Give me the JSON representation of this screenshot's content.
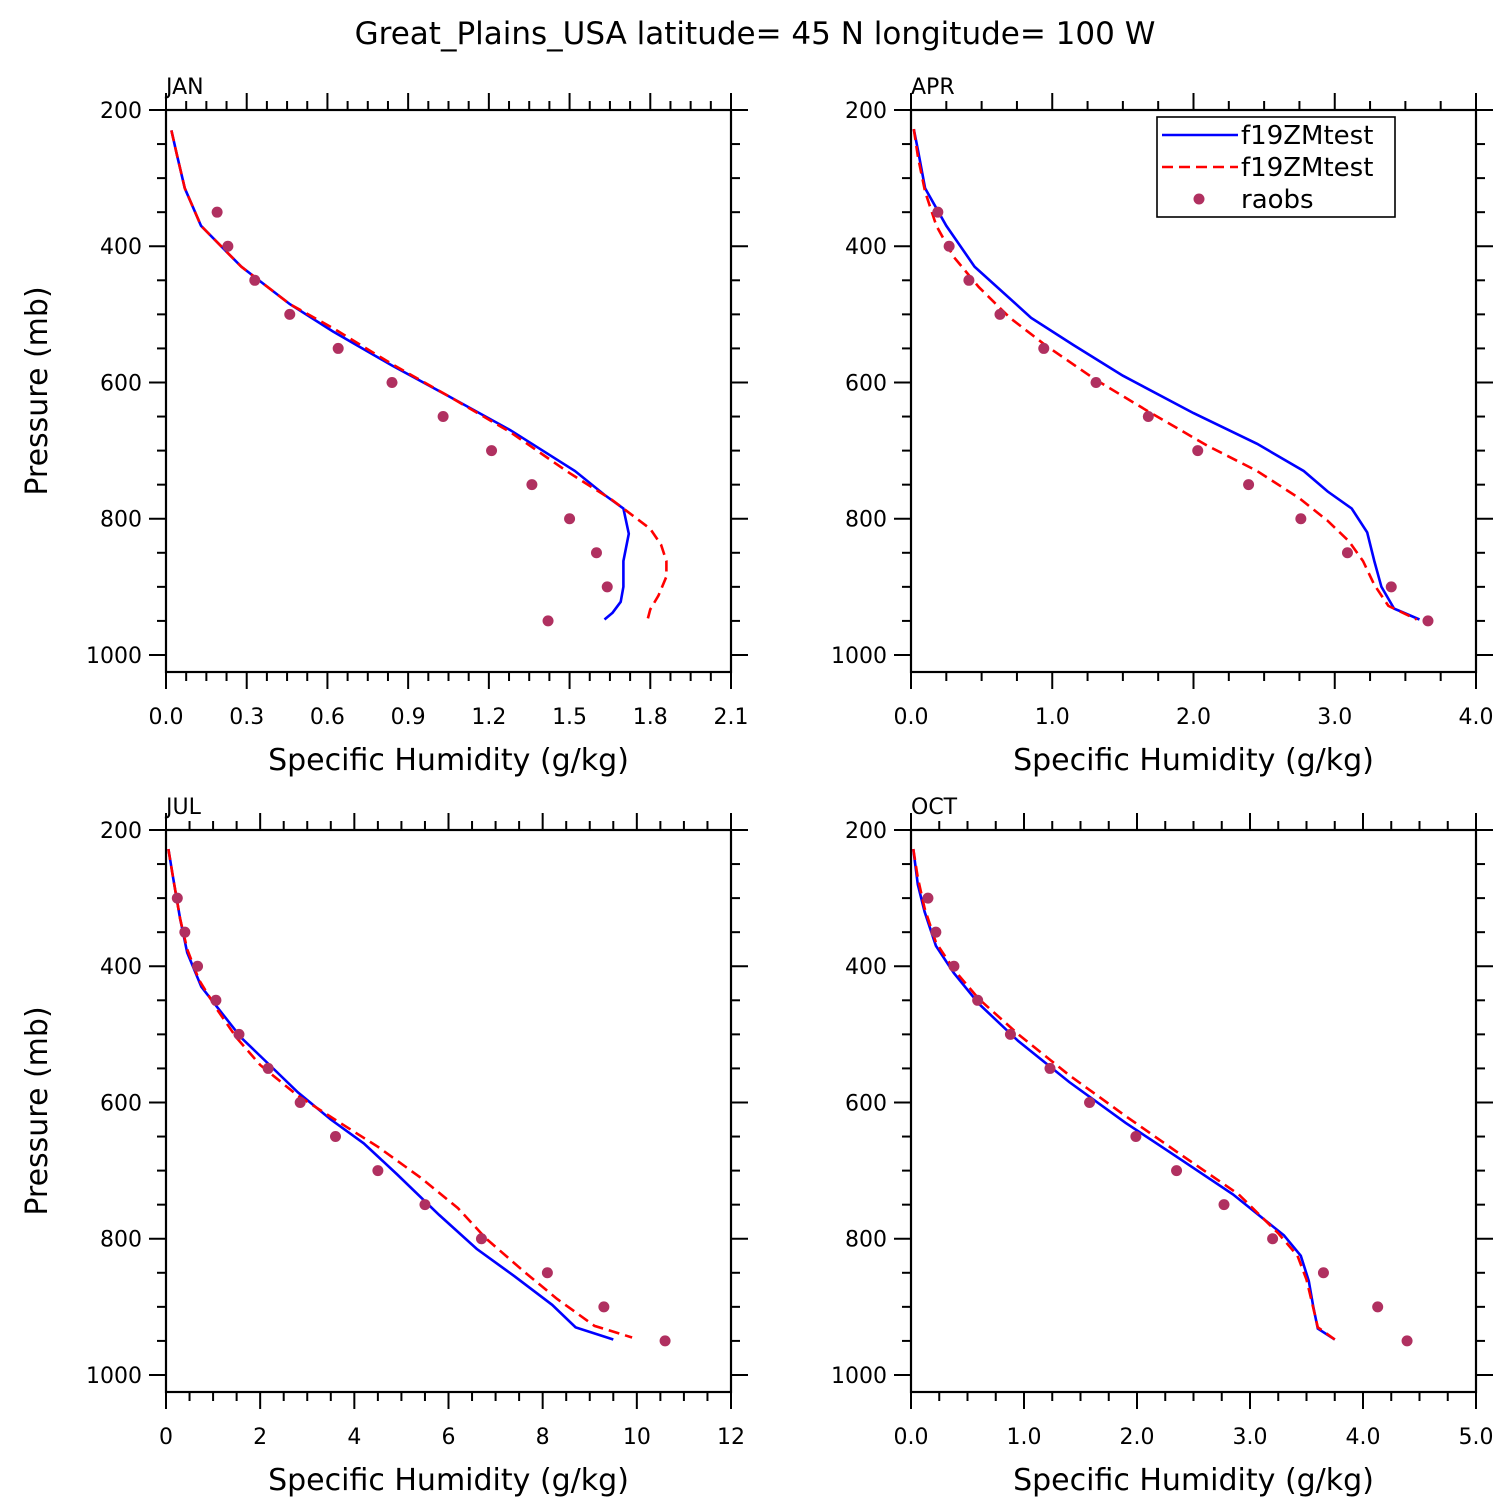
{
  "title": "Great_Plains_USA  latitude= 45 N longitude= 100 W",
  "legend": {
    "entries": [
      {
        "label": "f19ZMtest",
        "style": "solid",
        "color": "#0000ff"
      },
      {
        "label": "f19ZMtest",
        "style": "dashed",
        "color": "#ff0000"
      },
      {
        "label": "raobs",
        "style": "dot",
        "color": "#b03060"
      }
    ]
  },
  "chart_data": [
    {
      "type": "line",
      "panel": "JAN",
      "xlabel": "Specific Humidity (g/kg)",
      "ylabel": "Pressure (mb)",
      "xlim": [
        0,
        2.1
      ],
      "ylim": [
        200,
        1025
      ],
      "y_inverted": true,
      "x_ticks": [
        "0.0",
        "0.3",
        "0.6",
        "0.9",
        "1.2",
        "1.5",
        "1.8",
        "2.1"
      ],
      "y_ticks": [
        "200",
        "400",
        "600",
        "800",
        "1000"
      ],
      "series": [
        {
          "name": "f19ZMtest",
          "style": "solid",
          "color": "#0000ff",
          "points": [
            [
              0.02,
              230
            ],
            [
              0.04,
              265
            ],
            [
              0.07,
              315
            ],
            [
              0.13,
              370
            ],
            [
              0.28,
              430
            ],
            [
              0.46,
              485
            ],
            [
              0.62,
              525
            ],
            [
              0.84,
              575
            ],
            [
              1.05,
              620
            ],
            [
              1.28,
              670
            ],
            [
              1.52,
              730
            ],
            [
              1.63,
              765
            ],
            [
              1.7,
              785
            ],
            [
              1.72,
              822
            ],
            [
              1.7,
              862
            ],
            [
              1.7,
              900
            ],
            [
              1.69,
              922
            ],
            [
              1.66,
              938
            ],
            [
              1.63,
              948
            ]
          ]
        },
        {
          "name": "f19ZMtest",
          "style": "dashed",
          "color": "#ff0000",
          "points": [
            [
              0.02,
              230
            ],
            [
              0.04,
              265
            ],
            [
              0.07,
              315
            ],
            [
              0.13,
              370
            ],
            [
              0.28,
              430
            ],
            [
              0.46,
              485
            ],
            [
              0.62,
              520
            ],
            [
              0.84,
              573
            ],
            [
              1.05,
              620
            ],
            [
              1.28,
              673
            ],
            [
              1.5,
              733
            ],
            [
              1.66,
              773
            ],
            [
              1.8,
              815
            ],
            [
              1.84,
              838
            ],
            [
              1.86,
              862
            ],
            [
              1.86,
              885
            ],
            [
              1.83,
              913
            ],
            [
              1.8,
              933
            ],
            [
              1.79,
              948
            ]
          ]
        },
        {
          "name": "raobs",
          "style": "dot",
          "color": "#b03060",
          "points": [
            [
              0.19,
              350
            ],
            [
              0.23,
              400
            ],
            [
              0.33,
              450
            ],
            [
              0.46,
              500
            ],
            [
              0.64,
              550
            ],
            [
              0.84,
              600
            ],
            [
              1.03,
              650
            ],
            [
              1.21,
              700
            ],
            [
              1.36,
              750
            ],
            [
              1.5,
              800
            ],
            [
              1.6,
              850
            ],
            [
              1.64,
              900
            ],
            [
              1.42,
              950
            ]
          ]
        }
      ]
    },
    {
      "type": "line",
      "panel": "APR",
      "xlabel": "Specific Humidity (g/kg)",
      "ylabel": "",
      "xlim": [
        0,
        4.0
      ],
      "ylim": [
        200,
        1025
      ],
      "y_inverted": true,
      "x_ticks": [
        "0.0",
        "1.0",
        "2.0",
        "3.0",
        "4.0"
      ],
      "y_ticks": [
        "200",
        "400",
        "600",
        "800",
        "1000"
      ],
      "series": [
        {
          "name": "f19ZMtest",
          "style": "solid",
          "color": "#0000ff",
          "points": [
            [
              0.02,
              228
            ],
            [
              0.05,
              260
            ],
            [
              0.1,
              315
            ],
            [
              0.25,
              370
            ],
            [
              0.45,
              430
            ],
            [
              0.85,
              505
            ],
            [
              1.15,
              545
            ],
            [
              1.5,
              590
            ],
            [
              2.0,
              645
            ],
            [
              2.45,
              690
            ],
            [
              2.78,
              730
            ],
            [
              2.95,
              760
            ],
            [
              3.12,
              785
            ],
            [
              3.23,
              820
            ],
            [
              3.28,
              862
            ],
            [
              3.33,
              900
            ],
            [
              3.42,
              932
            ],
            [
              3.6,
              948
            ]
          ]
        },
        {
          "name": "f19ZMtest",
          "style": "dashed",
          "color": "#ff0000",
          "points": [
            [
              0.02,
              228
            ],
            [
              0.05,
              270
            ],
            [
              0.1,
              320
            ],
            [
              0.18,
              370
            ],
            [
              0.3,
              415
            ],
            [
              0.48,
              460
            ],
            [
              0.7,
              505
            ],
            [
              0.95,
              545
            ],
            [
              1.3,
              595
            ],
            [
              1.7,
              645
            ],
            [
              2.1,
              693
            ],
            [
              2.45,
              730
            ],
            [
              2.75,
              770
            ],
            [
              2.95,
              803
            ],
            [
              3.1,
              833
            ],
            [
              3.2,
              862
            ],
            [
              3.28,
              897
            ],
            [
              3.38,
              928
            ],
            [
              3.58,
              948
            ]
          ]
        },
        {
          "name": "raobs",
          "style": "dot",
          "color": "#b03060",
          "points": [
            [
              0.19,
              350
            ],
            [
              0.27,
              400
            ],
            [
              0.41,
              450
            ],
            [
              0.63,
              500
            ],
            [
              0.94,
              550
            ],
            [
              1.31,
              600
            ],
            [
              1.68,
              650
            ],
            [
              2.03,
              700
            ],
            [
              2.39,
              750
            ],
            [
              2.76,
              800
            ],
            [
              3.09,
              850
            ],
            [
              3.4,
              900
            ],
            [
              3.66,
              950
            ]
          ]
        }
      ]
    },
    {
      "type": "line",
      "panel": "JUL",
      "xlabel": "Specific Humidity (g/kg)",
      "ylabel": "Pressure (mb)",
      "xlim": [
        0,
        12
      ],
      "ylim": [
        200,
        1025
      ],
      "y_inverted": true,
      "x_ticks": [
        "0",
        "2",
        "4",
        "6",
        "8",
        "10",
        "12"
      ],
      "y_ticks": [
        "200",
        "400",
        "600",
        "800",
        "1000"
      ],
      "series": [
        {
          "name": "f19ZMtest",
          "style": "solid",
          "color": "#0000ff",
          "points": [
            [
              0.05,
              228
            ],
            [
              0.15,
              270
            ],
            [
              0.3,
              330
            ],
            [
              0.45,
              380
            ],
            [
              0.75,
              430
            ],
            [
              1.2,
              470
            ],
            [
              1.6,
              505
            ],
            [
              2.2,
              545
            ],
            [
              2.8,
              585
            ],
            [
              3.5,
              625
            ],
            [
              4.2,
              660
            ],
            [
              4.9,
              705
            ],
            [
              5.8,
              765
            ],
            [
              6.6,
              815
            ],
            [
              7.4,
              855
            ],
            [
              8.2,
              897
            ],
            [
              8.7,
              930
            ],
            [
              9.5,
              948
            ]
          ]
        },
        {
          "name": "f19ZMtest",
          "style": "dashed",
          "color": "#ff0000",
          "points": [
            [
              0.05,
              228
            ],
            [
              0.15,
              270
            ],
            [
              0.3,
              330
            ],
            [
              0.45,
              375
            ],
            [
              0.7,
              420
            ],
            [
              1.1,
              465
            ],
            [
              1.5,
              505
            ],
            [
              2.0,
              545
            ],
            [
              2.8,
              590
            ],
            [
              3.7,
              630
            ],
            [
              4.5,
              665
            ],
            [
              5.4,
              710
            ],
            [
              6.2,
              755
            ],
            [
              6.8,
              800
            ],
            [
              7.6,
              848
            ],
            [
              8.3,
              888
            ],
            [
              9.1,
              928
            ],
            [
              9.9,
              945
            ]
          ]
        },
        {
          "name": "raobs",
          "style": "dot",
          "color": "#b03060",
          "points": [
            [
              0.24,
              300
            ],
            [
              0.4,
              350
            ],
            [
              0.67,
              400
            ],
            [
              1.06,
              450
            ],
            [
              1.55,
              500
            ],
            [
              2.17,
              550
            ],
            [
              2.85,
              600
            ],
            [
              3.6,
              650
            ],
            [
              4.5,
              700
            ],
            [
              5.5,
              750
            ],
            [
              6.7,
              800
            ],
            [
              8.1,
              850
            ],
            [
              9.3,
              900
            ],
            [
              10.6,
              950
            ]
          ]
        }
      ]
    },
    {
      "type": "line",
      "panel": "OCT",
      "xlabel": "Specific Humidity (g/kg)",
      "ylabel": "",
      "xlim": [
        0,
        5.0
      ],
      "ylim": [
        200,
        1025
      ],
      "y_inverted": true,
      "x_ticks": [
        "0.0",
        "1.0",
        "2.0",
        "3.0",
        "4.0",
        "5.0"
      ],
      "y_ticks": [
        "200",
        "400",
        "600",
        "800",
        "1000"
      ],
      "series": [
        {
          "name": "f19ZMtest",
          "style": "solid",
          "color": "#0000ff",
          "points": [
            [
              0.02,
              228
            ],
            [
              0.06,
              280
            ],
            [
              0.12,
              320
            ],
            [
              0.22,
              370
            ],
            [
              0.38,
              410
            ],
            [
              0.6,
              455
            ],
            [
              0.95,
              510
            ],
            [
              1.4,
              570
            ],
            [
              1.9,
              630
            ],
            [
              2.4,
              685
            ],
            [
              2.85,
              735
            ],
            [
              3.3,
              795
            ],
            [
              3.45,
              825
            ],
            [
              3.52,
              862
            ],
            [
              3.56,
              900
            ],
            [
              3.6,
              932
            ],
            [
              3.75,
              948
            ]
          ]
        },
        {
          "name": "f19ZMtest",
          "style": "dashed",
          "color": "#ff0000",
          "points": [
            [
              0.02,
              228
            ],
            [
              0.06,
              270
            ],
            [
              0.12,
              315
            ],
            [
              0.22,
              365
            ],
            [
              0.38,
              405
            ],
            [
              0.6,
              448
            ],
            [
              0.95,
              500
            ],
            [
              1.4,
              560
            ],
            [
              1.9,
              620
            ],
            [
              2.4,
              678
            ],
            [
              2.9,
              735
            ],
            [
              3.25,
              792
            ],
            [
              3.42,
              825
            ],
            [
              3.5,
              860
            ],
            [
              3.55,
              895
            ],
            [
              3.6,
              930
            ],
            [
              3.75,
              948
            ]
          ]
        },
        {
          "name": "raobs",
          "style": "dot",
          "color": "#b03060",
          "points": [
            [
              0.15,
              300
            ],
            [
              0.22,
              350
            ],
            [
              0.38,
              400
            ],
            [
              0.59,
              450
            ],
            [
              0.88,
              500
            ],
            [
              1.23,
              550
            ],
            [
              1.58,
              600
            ],
            [
              1.99,
              650
            ],
            [
              2.35,
              700
            ],
            [
              2.77,
              750
            ],
            [
              3.2,
              800
            ],
            [
              3.65,
              850
            ],
            [
              4.13,
              900
            ],
            [
              4.39,
              950
            ]
          ]
        }
      ]
    }
  ]
}
